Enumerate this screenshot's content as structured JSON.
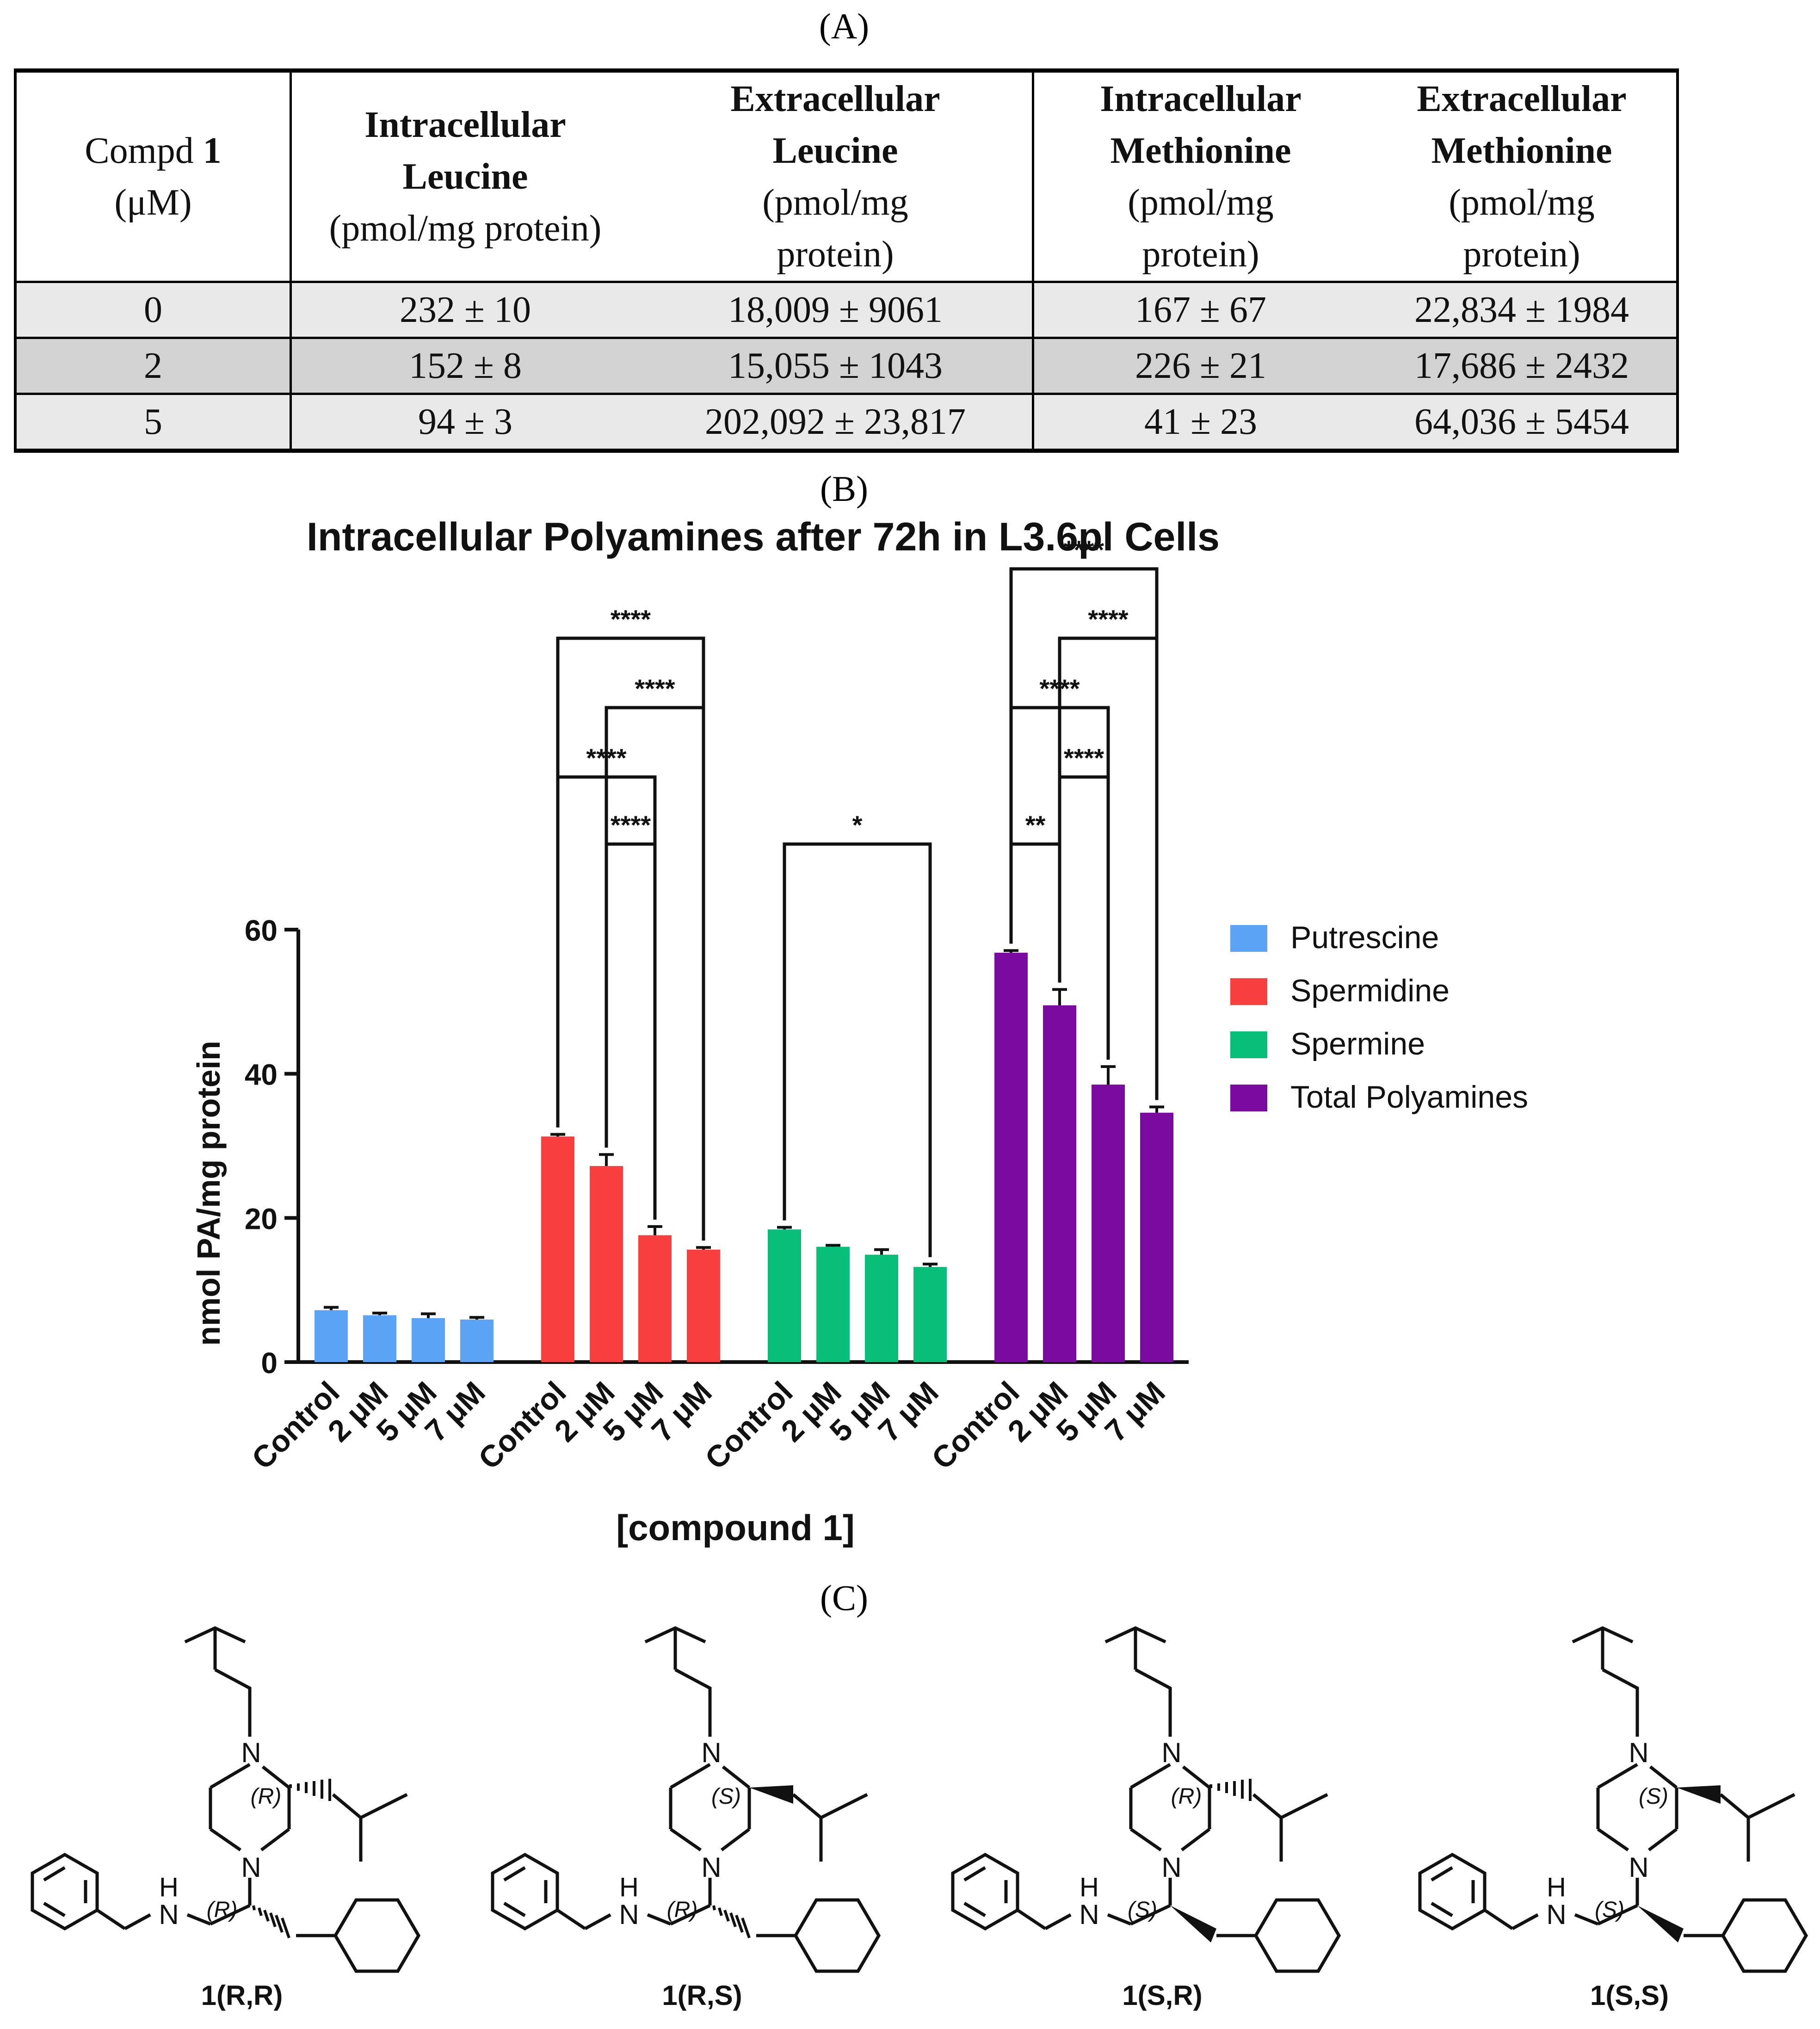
{
  "panels": {
    "a": "(A)",
    "b": "(B)",
    "c": "(C)"
  },
  "table": {
    "headers": [
      {
        "pre": "Compd ",
        "bold": "1",
        "lines": [
          "(μM)"
        ]
      },
      {
        "lines": [
          "Intracellular",
          "Leucine",
          "(pmol/mg protein)"
        ],
        "bold_lines": 2
      },
      {
        "lines": [
          "Extracellular",
          "Leucine",
          "(pmol/mg",
          "protein)"
        ],
        "bold_lines": 2
      },
      {
        "lines": [
          "Intracellular",
          "Methionine",
          "(pmol/mg",
          "protein)"
        ],
        "bold_lines": 2
      },
      {
        "lines": [
          "Extracellular",
          "Methionine",
          "(pmol/mg",
          "protein)"
        ],
        "bold_lines": 2
      }
    ],
    "rows": [
      [
        "0",
        "232 ± 10",
        "18,009 ± 9061",
        "167 ± 67",
        "22,834 ± 1984"
      ],
      [
        "2",
        "152 ± 8",
        "15,055 ± 1043",
        "226 ± 21",
        "17,686 ± 2432"
      ],
      [
        "5",
        "94 ± 3",
        "202,092 ± 23,817",
        "41 ± 23",
        "64,036 ± 5454"
      ]
    ]
  },
  "chart_data": {
    "type": "bar",
    "title": "Intracellular Polyamines after 72h in L3.6pl Cells",
    "xlabel": "[compound 1]",
    "ylabel": "nmol PA/mg protein",
    "ylim": [
      0,
      60
    ],
    "yticks": [
      0,
      20,
      40,
      60
    ],
    "categories": [
      "Control",
      "2 μM",
      "5 μM",
      "7 μM"
    ],
    "legend_position": "right",
    "series": [
      {
        "name": "Putrescine",
        "color": "#5aa3f5",
        "values": [
          7.2,
          6.5,
          6.1,
          5.9
        ],
        "errors": [
          0.4,
          0.3,
          0.6,
          0.3
        ]
      },
      {
        "name": "Spermidine",
        "color": "#f9403f",
        "values": [
          31.3,
          27.2,
          17.6,
          15.6
        ],
        "errors": [
          0.3,
          1.6,
          1.2,
          0.3
        ]
      },
      {
        "name": "Spermine",
        "color": "#08bf79",
        "values": [
          18.4,
          16.0,
          14.9,
          13.2
        ],
        "errors": [
          0.3,
          0.2,
          0.7,
          0.4
        ]
      },
      {
        "name": "Total Polyamines",
        "color": "#7a0aa0",
        "values": [
          56.8,
          49.5,
          38.5,
          34.6
        ],
        "errors": [
          0.3,
          2.2,
          2.5,
          0.8
        ]
      }
    ],
    "significance": [
      {
        "series": 1,
        "from": 0,
        "to": 3,
        "label": "****"
      },
      {
        "series": 1,
        "from": 1,
        "to": 3,
        "label": "****"
      },
      {
        "series": 1,
        "from": 0,
        "to": 2,
        "label": "****"
      },
      {
        "series": 1,
        "from": 1,
        "to": 2,
        "label": "****"
      },
      {
        "series": 2,
        "from": 0,
        "to": 3,
        "label": "*"
      },
      {
        "series": 3,
        "from": 0,
        "to": 3,
        "label": "****"
      },
      {
        "series": 3,
        "from": 1,
        "to": 3,
        "label": "****"
      },
      {
        "series": 3,
        "from": 0,
        "to": 2,
        "label": "****"
      },
      {
        "series": 3,
        "from": 1,
        "to": 2,
        "label": "****"
      },
      {
        "series": 3,
        "from": 0,
        "to": 1,
        "label": "**"
      }
    ]
  },
  "molecules": {
    "labels": [
      "1(R,R)",
      "1(R,S)",
      "1(S,R)",
      "1(S,S)"
    ],
    "ring_descriptors": [
      "(R)",
      "(S)",
      "(R)",
      "(S)"
    ],
    "chain_descriptors": [
      "(R)",
      "(R)",
      "(S)",
      "(S)"
    ],
    "atom_n": "N",
    "atom_h": "H"
  }
}
